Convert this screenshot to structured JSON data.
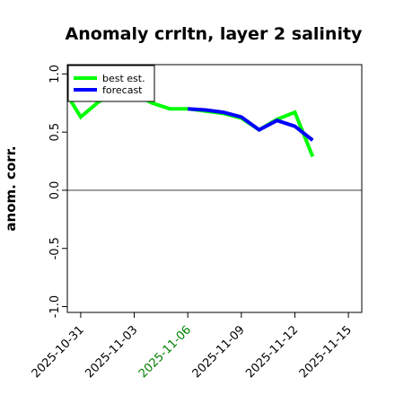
{
  "chart_data": {
    "type": "line",
    "title": "Anomaly crrltn, layer 2 salinity",
    "ylabel": "anom. corr.",
    "xlabel": "",
    "ylim": [
      -1.05,
      1.08
    ],
    "yticks": [
      -1.0,
      -0.5,
      0.0,
      0.5,
      1.0
    ],
    "ytick_labels": [
      "-1.0",
      "-0.5",
      "0.0",
      "0.5",
      "1.0"
    ],
    "xlim": [
      -0.75,
      15.75
    ],
    "xticks": [
      0,
      3,
      6,
      9,
      12,
      15
    ],
    "xtick_labels": [
      "2025-10-31",
      "2025-11-03",
      "2025-11-06",
      "2025-11-09",
      "2025-11-12",
      "2025-11-15"
    ],
    "xtick_colors": [
      "#000000",
      "#000000",
      "#008000",
      "#000000",
      "#000000",
      "#000000"
    ],
    "hline": 0.0,
    "hline_x": [
      -2,
      16
    ],
    "legend": {
      "placement": "top-left",
      "entries": [
        "best est.",
        "forecast"
      ]
    },
    "series": [
      {
        "name": "best est.",
        "color": "#00ff00",
        "x": [
          -1,
          0,
          1,
          2,
          3,
          4,
          5,
          6,
          7,
          8,
          9,
          10,
          11,
          12,
          13
        ],
        "values": [
          0.88,
          0.63,
          0.76,
          0.85,
          0.83,
          0.75,
          0.7,
          0.7,
          0.68,
          0.66,
          0.62,
          0.52,
          0.61,
          0.67,
          0.29
        ]
      },
      {
        "name": "forecast",
        "color": "#0000ff",
        "x": [
          6,
          7,
          8,
          9,
          10,
          11,
          12,
          13
        ],
        "values": [
          0.7,
          0.69,
          0.67,
          0.63,
          0.52,
          0.6,
          0.55,
          0.43
        ]
      }
    ]
  }
}
